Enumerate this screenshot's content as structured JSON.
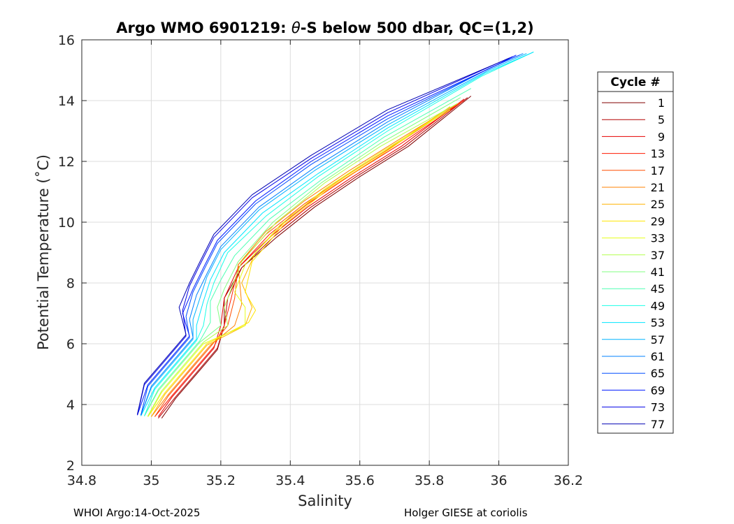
{
  "chart_data": {
    "type": "line",
    "title_prefix": "Argo WMO 6901219: ",
    "title_symbol": "θ",
    "title_suffix": "-S below 500 dbar,  QC=(1,2)",
    "xlabel": "Salinity",
    "ylabel": "Potential Temperature (˚C)",
    "xlim": [
      34.8,
      36.2
    ],
    "ylim": [
      2,
      16
    ],
    "xticks": [
      "34.8",
      "35",
      "35.2",
      "35.4",
      "35.6",
      "35.8",
      "36",
      "36.2"
    ],
    "yticks": [
      "2",
      "4",
      "6",
      "8",
      "10",
      "12",
      "14",
      "16"
    ],
    "grid": true,
    "legend": {
      "title": "Cycle #",
      "placement": "right-outside",
      "entries": [
        "1",
        "5",
        "9",
        "13",
        "17",
        "21",
        "25",
        "29",
        "33",
        "37",
        "41",
        "45",
        "49",
        "53",
        "57",
        "61",
        "65",
        "69",
        "73",
        "77"
      ],
      "colors": [
        "#800000",
        "#b30000",
        "#e60000",
        "#ff1a00",
        "#ff4d00",
        "#ff8000",
        "#ffb300",
        "#ffe600",
        "#e6ff1a",
        "#b3ff4d",
        "#80ff80",
        "#4dffb3",
        "#1affe6",
        "#00e6ff",
        "#00b3ff",
        "#0080ff",
        "#004dff",
        "#001aff",
        "#0000e6",
        "#0000b3"
      ]
    },
    "series": [
      {
        "name": "1",
        "color": "#800000",
        "points": [
          [
            35.03,
            3.55
          ],
          [
            35.07,
            4.2
          ],
          [
            35.13,
            5.0
          ],
          [
            35.19,
            5.8
          ],
          [
            35.21,
            6.6
          ],
          [
            35.21,
            7.5
          ],
          [
            35.26,
            8.5
          ],
          [
            35.36,
            9.5
          ],
          [
            35.47,
            10.5
          ],
          [
            35.6,
            11.5
          ],
          [
            35.74,
            12.5
          ],
          [
            35.92,
            14.15
          ]
        ]
      },
      {
        "name": "5",
        "color": "#b30000",
        "points": [
          [
            35.02,
            3.55
          ],
          [
            35.07,
            4.25
          ],
          [
            35.13,
            5.05
          ],
          [
            35.19,
            5.85
          ],
          [
            35.21,
            6.6
          ],
          [
            35.22,
            7.5
          ],
          [
            35.26,
            8.5
          ],
          [
            35.35,
            9.5
          ],
          [
            35.46,
            10.5
          ],
          [
            35.59,
            11.5
          ],
          [
            35.73,
            12.5
          ],
          [
            35.91,
            14.1
          ]
        ]
      },
      {
        "name": "9",
        "color": "#e60000",
        "points": [
          [
            35.02,
            3.6
          ],
          [
            35.06,
            4.25
          ],
          [
            35.12,
            5.05
          ],
          [
            35.18,
            5.85
          ],
          [
            35.2,
            6.6
          ],
          [
            35.21,
            7.5
          ],
          [
            35.25,
            8.5
          ],
          [
            35.34,
            9.5
          ],
          [
            35.45,
            10.5
          ],
          [
            35.58,
            11.5
          ],
          [
            35.72,
            12.5
          ],
          [
            35.9,
            14.05
          ]
        ]
      },
      {
        "name": "13",
        "color": "#ff1a00",
        "points": [
          [
            35.01,
            3.6
          ],
          [
            35.06,
            4.3
          ],
          [
            35.12,
            5.1
          ],
          [
            35.18,
            5.9
          ],
          [
            35.21,
            6.6
          ],
          [
            35.23,
            7.5
          ],
          [
            35.25,
            8.5
          ],
          [
            35.34,
            9.6
          ],
          [
            35.45,
            10.6
          ],
          [
            35.58,
            11.6
          ],
          [
            35.72,
            12.6
          ],
          [
            35.9,
            14.0
          ]
        ]
      },
      {
        "name": "17",
        "color": "#ff4d00",
        "points": [
          [
            35.01,
            3.6
          ],
          [
            35.05,
            4.3
          ],
          [
            35.11,
            5.1
          ],
          [
            35.17,
            5.9
          ],
          [
            35.22,
            6.6
          ],
          [
            35.24,
            7.5
          ],
          [
            35.25,
            8.6
          ],
          [
            35.33,
            9.6
          ],
          [
            35.44,
            10.6
          ],
          [
            35.57,
            11.6
          ],
          [
            35.71,
            12.6
          ],
          [
            35.89,
            13.95
          ]
        ]
      },
      {
        "name": "21",
        "color": "#ff8000",
        "points": [
          [
            35.0,
            3.6
          ],
          [
            35.05,
            4.35
          ],
          [
            35.11,
            5.15
          ],
          [
            35.17,
            5.95
          ],
          [
            35.24,
            6.6
          ],
          [
            35.26,
            7.3
          ],
          [
            35.25,
            8.6
          ],
          [
            35.33,
            9.7
          ],
          [
            35.44,
            10.7
          ],
          [
            35.57,
            11.7
          ],
          [
            35.71,
            12.7
          ],
          [
            35.88,
            13.9
          ]
        ]
      },
      {
        "name": "25",
        "color": "#ffb300",
        "points": [
          [
            35.0,
            3.6
          ],
          [
            35.04,
            4.35
          ],
          [
            35.1,
            5.15
          ],
          [
            35.16,
            5.95
          ],
          [
            35.27,
            6.6
          ],
          [
            35.29,
            7.2
          ],
          [
            35.26,
            8.0
          ],
          [
            35.3,
            9.0
          ],
          [
            35.4,
            10.2
          ],
          [
            35.53,
            11.3
          ],
          [
            35.68,
            12.4
          ],
          [
            35.86,
            13.8
          ]
        ]
      },
      {
        "name": "29",
        "color": "#ffe600",
        "points": [
          [
            34.99,
            3.6
          ],
          [
            35.04,
            4.4
          ],
          [
            35.1,
            5.2
          ],
          [
            35.16,
            6.0
          ],
          [
            35.28,
            6.7
          ],
          [
            35.3,
            7.1
          ],
          [
            35.27,
            7.7
          ],
          [
            35.29,
            8.7
          ],
          [
            35.38,
            9.9
          ],
          [
            35.51,
            11.1
          ],
          [
            35.66,
            12.2
          ],
          [
            35.85,
            13.7
          ]
        ]
      },
      {
        "name": "33",
        "color": "#e6ff1a",
        "points": [
          [
            34.99,
            3.6
          ],
          [
            35.03,
            4.4
          ],
          [
            35.09,
            5.2
          ],
          [
            35.15,
            6.0
          ],
          [
            35.27,
            6.6
          ],
          [
            35.27,
            7.2
          ],
          [
            35.24,
            7.7
          ],
          [
            35.27,
            8.6
          ],
          [
            35.37,
            9.9
          ],
          [
            35.5,
            11.1
          ],
          [
            35.66,
            12.3
          ],
          [
            35.86,
            13.7
          ]
        ]
      },
      {
        "name": "37",
        "color": "#b3ff4d",
        "points": [
          [
            34.99,
            3.62
          ],
          [
            35.03,
            4.45
          ],
          [
            35.09,
            5.25
          ],
          [
            35.15,
            6.05
          ],
          [
            35.22,
            6.6
          ],
          [
            35.21,
            7.2
          ],
          [
            35.23,
            7.8
          ],
          [
            35.26,
            8.7
          ],
          [
            35.36,
            10.0
          ],
          [
            35.5,
            11.3
          ],
          [
            35.66,
            12.5
          ],
          [
            35.88,
            13.9
          ]
        ]
      },
      {
        "name": "41",
        "color": "#80ff80",
        "points": [
          [
            34.98,
            3.62
          ],
          [
            35.02,
            4.45
          ],
          [
            35.08,
            5.25
          ],
          [
            35.14,
            6.05
          ],
          [
            35.2,
            6.6
          ],
          [
            35.19,
            7.2
          ],
          [
            35.21,
            7.8
          ],
          [
            35.25,
            8.7
          ],
          [
            35.35,
            10.0
          ],
          [
            35.49,
            11.3
          ],
          [
            35.66,
            12.6
          ],
          [
            35.89,
            14.1
          ]
        ]
      },
      {
        "name": "45",
        "color": "#4dffb3",
        "points": [
          [
            34.98,
            3.62
          ],
          [
            35.02,
            4.5
          ],
          [
            35.08,
            5.3
          ],
          [
            35.14,
            6.1
          ],
          [
            35.17,
            6.7
          ],
          [
            35.17,
            7.4
          ],
          [
            35.2,
            8.1
          ],
          [
            35.24,
            8.9
          ],
          [
            35.34,
            10.1
          ],
          [
            35.49,
            11.4
          ],
          [
            35.67,
            12.8
          ],
          [
            35.92,
            14.4
          ]
        ]
      },
      {
        "name": "49",
        "color": "#1affe6",
        "points": [
          [
            34.98,
            3.62
          ],
          [
            35.01,
            4.5
          ],
          [
            35.07,
            5.3
          ],
          [
            35.13,
            6.1
          ],
          [
            35.15,
            6.6
          ],
          [
            35.16,
            7.3
          ],
          [
            35.18,
            8.0
          ],
          [
            35.22,
            9.0
          ],
          [
            35.33,
            10.2
          ],
          [
            35.48,
            11.5
          ],
          [
            35.68,
            13.0
          ],
          [
            35.95,
            14.8
          ],
          [
            36.1,
            15.6
          ]
        ]
      },
      {
        "name": "53",
        "color": "#00e6ff",
        "points": [
          [
            34.97,
            3.62
          ],
          [
            35.01,
            4.55
          ],
          [
            35.07,
            5.35
          ],
          [
            35.13,
            6.15
          ],
          [
            35.13,
            6.6
          ],
          [
            35.15,
            7.4
          ],
          [
            35.17,
            8.1
          ],
          [
            35.21,
            9.0
          ],
          [
            35.32,
            10.3
          ],
          [
            35.48,
            11.6
          ],
          [
            35.68,
            13.1
          ],
          [
            35.96,
            14.9
          ],
          [
            36.1,
            15.6
          ]
        ]
      },
      {
        "name": "57",
        "color": "#00b3ff",
        "points": [
          [
            34.97,
            3.65
          ],
          [
            35.0,
            4.55
          ],
          [
            35.06,
            5.35
          ],
          [
            35.12,
            6.15
          ],
          [
            35.12,
            6.8
          ],
          [
            35.14,
            7.5
          ],
          [
            35.16,
            8.2
          ],
          [
            35.2,
            9.1
          ],
          [
            35.31,
            10.4
          ],
          [
            35.47,
            11.7
          ],
          [
            35.68,
            13.2
          ],
          [
            35.97,
            15.0
          ],
          [
            36.08,
            15.55
          ]
        ]
      },
      {
        "name": "61",
        "color": "#0080ff",
        "points": [
          [
            34.97,
            3.65
          ],
          [
            35.0,
            4.6
          ],
          [
            35.06,
            5.4
          ],
          [
            35.12,
            6.2
          ],
          [
            35.11,
            6.8
          ],
          [
            35.13,
            7.6
          ],
          [
            35.16,
            8.3
          ],
          [
            35.2,
            9.2
          ],
          [
            35.31,
            10.5
          ],
          [
            35.47,
            11.8
          ],
          [
            35.68,
            13.3
          ],
          [
            35.97,
            15.05
          ],
          [
            36.07,
            15.55
          ]
        ]
      },
      {
        "name": "65",
        "color": "#004dff",
        "points": [
          [
            34.97,
            3.65
          ],
          [
            34.99,
            4.6
          ],
          [
            35.05,
            5.4
          ],
          [
            35.11,
            6.2
          ],
          [
            35.1,
            6.9
          ],
          [
            35.12,
            7.7
          ],
          [
            35.15,
            8.4
          ],
          [
            35.19,
            9.3
          ],
          [
            35.3,
            10.6
          ],
          [
            35.46,
            11.9
          ],
          [
            35.68,
            13.4
          ],
          [
            35.98,
            15.1
          ],
          [
            36.06,
            15.5
          ]
        ]
      },
      {
        "name": "69",
        "color": "#001aff",
        "points": [
          [
            34.96,
            3.65
          ],
          [
            34.99,
            4.65
          ],
          [
            35.05,
            5.45
          ],
          [
            35.11,
            6.25
          ],
          [
            35.09,
            7.0
          ],
          [
            35.12,
            7.8
          ],
          [
            35.15,
            8.5
          ],
          [
            35.19,
            9.4
          ],
          [
            35.3,
            10.7
          ],
          [
            35.46,
            12.0
          ],
          [
            35.68,
            13.5
          ],
          [
            35.99,
            15.15
          ],
          [
            36.05,
            15.5
          ]
        ]
      },
      {
        "name": "73",
        "color": "#0000e6",
        "points": [
          [
            34.96,
            3.65
          ],
          [
            34.98,
            4.65
          ],
          [
            35.04,
            5.45
          ],
          [
            35.1,
            6.25
          ],
          [
            35.09,
            7.1
          ],
          [
            35.11,
            7.9
          ],
          [
            35.14,
            8.6
          ],
          [
            35.18,
            9.5
          ],
          [
            35.29,
            10.8
          ],
          [
            35.46,
            12.1
          ],
          [
            35.68,
            13.6
          ],
          [
            35.99,
            15.2
          ],
          [
            36.04,
            15.45
          ]
        ]
      },
      {
        "name": "77",
        "color": "#0000b3",
        "points": [
          [
            34.96,
            3.68
          ],
          [
            34.98,
            4.7
          ],
          [
            35.04,
            5.5
          ],
          [
            35.1,
            6.3
          ],
          [
            35.08,
            7.2
          ],
          [
            35.11,
            8.0
          ],
          [
            35.14,
            8.7
          ],
          [
            35.18,
            9.6
          ],
          [
            35.29,
            10.9
          ],
          [
            35.46,
            12.2
          ],
          [
            35.68,
            13.7
          ],
          [
            36.0,
            15.25
          ],
          [
            36.03,
            15.4
          ]
        ]
      }
    ]
  },
  "footer": {
    "left": "WHOI Argo:14-Oct-2025",
    "right": "Holger GIESE at coriolis"
  }
}
